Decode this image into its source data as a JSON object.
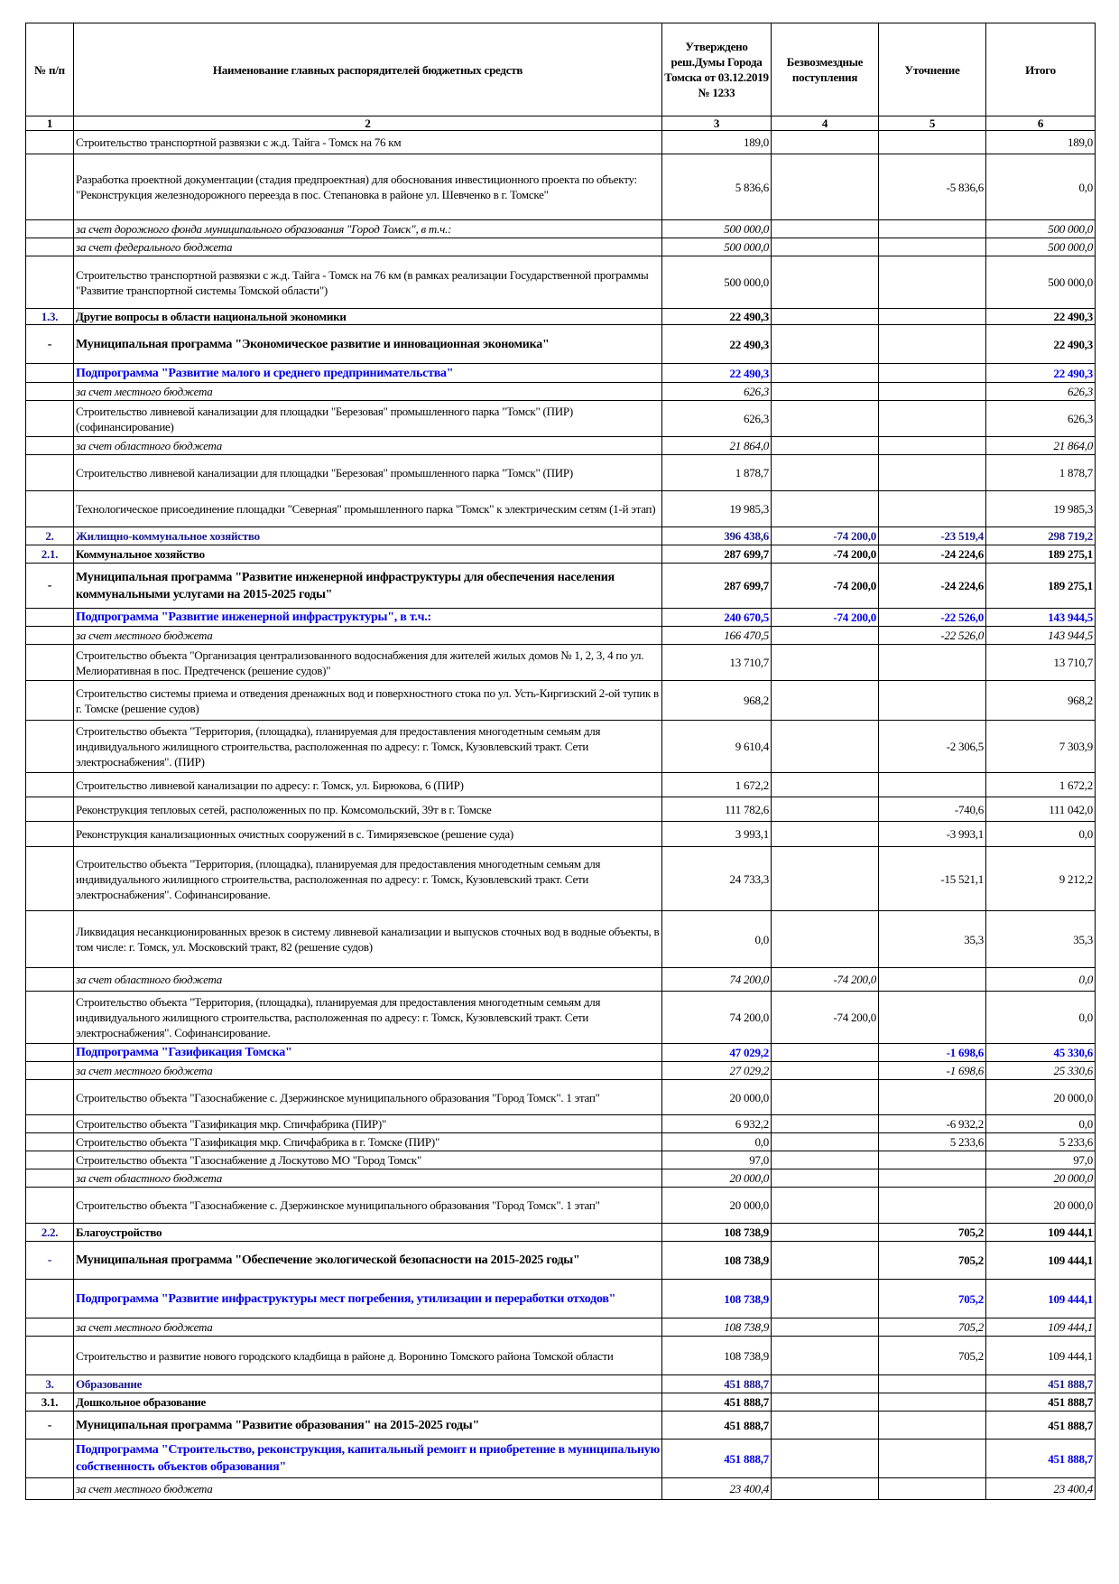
{
  "header": {
    "num": "№ п/п",
    "name": "Наименование главных распорядителей бюджетных средств",
    "approved": "Утверждено реш.Думы Города Томска от 03.12.2019 № 1233",
    "grants": "Безвозмездные поступления",
    "adjustment": "Уточнение",
    "total": "Итого"
  },
  "column_numbers": [
    "1",
    "2",
    "3",
    "4",
    "5",
    "6"
  ],
  "colors": {
    "section": "#1a1a8c",
    "subprogram": "#0000ee",
    "text": "#000000"
  },
  "rows": [
    {
      "type": "plain",
      "num": "",
      "name": "Строительство транспортной развязки с ж.д. Тайга - Томск на 76 км",
      "c3": "189,0",
      "c4": "",
      "c5": "",
      "c6": "189,0"
    },
    {
      "type": "plain",
      "num": "",
      "name": "Разработка проектной документации (стадия предпроектная) для обоснования инвестиционного проекта по объекту:  \"Реконструкция железнодорожного переезда в пос. Степановка в районе ул. Шевченко в г. Томске\"",
      "c3": "5 836,6",
      "c4": "",
      "c5": "-5 836,6",
      "c6": "0,0"
    },
    {
      "type": "italic",
      "num": "",
      "name": "за счет дорожного фонда муниципального образования \"Город Томск\", в т.ч.:",
      "c3": "500 000,0",
      "c4": "",
      "c5": "",
      "c6": "500 000,0"
    },
    {
      "type": "italic",
      "num": "",
      "name": "за счет федерального бюджета",
      "c3": "500 000,0",
      "c4": "",
      "c5": "",
      "c6": "500 000,0"
    },
    {
      "type": "plain",
      "num": "",
      "name": "Строительство транспортной развязки с ж.д. Тайга - Томск на 76 км (в рамках реализации Государственной программы \"Развитие транспортной системы Томской области\")",
      "c3": "500 000,0",
      "c4": "",
      "c5": "",
      "c6": "500 000,0"
    },
    {
      "type": "section",
      "num": "1.3.",
      "name": "Другие вопросы в области национальной экономики",
      "c3": "22 490,3",
      "c4": "",
      "c5": "",
      "c6": "22 490,3"
    },
    {
      "type": "program",
      "num": "-",
      "name": "Муниципальная программа \"Экономическое развитие и инновационная экономика\"",
      "c3": "22 490,3",
      "c4": "",
      "c5": "",
      "c6": "22 490,3"
    },
    {
      "type": "sub",
      "num": "",
      "name": "Подпрограмма \"Развитие малого и среднего предпринимательства\"",
      "c3": "22 490,3",
      "c4": "",
      "c5": "",
      "c6": "22 490,3"
    },
    {
      "type": "italic",
      "num": "",
      "name": "за счет местного бюджета",
      "c3": "626,3",
      "c4": "",
      "c5": "",
      "c6": "626,3"
    },
    {
      "type": "plain",
      "num": "",
      "name": "Строительство ливневой канализации для площадки \"Березовая\" промышленного парка \"Томск\" (ПИР) (софинансирование)",
      "c3": "626,3",
      "c4": "",
      "c5": "",
      "c6": "626,3"
    },
    {
      "type": "italic",
      "num": "",
      "name": "за счет областного бюджета",
      "c3": "21 864,0",
      "c4": "",
      "c5": "",
      "c6": "21 864,0"
    },
    {
      "type": "plain",
      "num": "",
      "name": "Строительство ливневой канализации для площадки \"Березовая\" промышленного парка \"Томск\" (ПИР)",
      "c3": "1 878,7",
      "c4": "",
      "c5": "",
      "c6": "1 878,7"
    },
    {
      "type": "plain",
      "num": "",
      "name": "Технологическое присоединение площадки \"Северная\" промышленного парка \"Томск\" к электрическим сетям (1-й этап)",
      "c3": "19 985,3",
      "c4": "",
      "c5": "",
      "c6": "19 985,3"
    },
    {
      "type": "section-blue",
      "num": "2.",
      "name": "Жилищно-коммунальное хозяйство",
      "c3": "396 438,6",
      "c4": "-74 200,0",
      "c5": "-23 519,4",
      "c6": "298 719,2"
    },
    {
      "type": "section",
      "num": "2.1.",
      "name": "Коммунальное хозяйство",
      "c3": "287 699,7",
      "c4": "-74 200,0",
      "c5": "-24 224,6",
      "c6": "189 275,1"
    },
    {
      "type": "program",
      "num": "-",
      "name": "Муниципальная программа \"Развитие инженерной инфраструктуры для обеспечения населения коммунальными услугами на 2015-2025 годы\"",
      "c3": "287 699,7",
      "c4": "-74 200,0",
      "c5": "-24 224,6",
      "c6": "189 275,1"
    },
    {
      "type": "sub",
      "num": "",
      "name": "Подпрограмма \"Развитие инженерной инфраструктуры\", в т.ч.:",
      "c3": "240 670,5",
      "c4": "-74 200,0",
      "c5": "-22 526,0",
      "c6": "143 944,5"
    },
    {
      "type": "italic",
      "num": "",
      "name": "за счет местного бюджета",
      "c3": "166 470,5",
      "c4": "",
      "c5": "-22 526,0",
      "c6": "143 944,5"
    },
    {
      "type": "plain",
      "num": "",
      "name": "Строительство объекта \"Организация централизованного водоснабжения для жителей жилых домов № 1, 2, 3, 4 по ул. Мелиоративная в пос. Предтеченск (решение судов)\"",
      "c3": "13 710,7",
      "c4": "",
      "c5": "",
      "c6": "13 710,7"
    },
    {
      "type": "plain",
      "num": "",
      "name": "Строительство системы приема и отведения дренажных вод и поверхностного стока по ул. Усть-Киргизский 2-ой тупик в г. Томске (решение судов)",
      "c3": "968,2",
      "c4": "",
      "c5": "",
      "c6": "968,2"
    },
    {
      "type": "plain",
      "num": "",
      "name": "Строительство объекта \"Территория, (площадка), планируемая для предоставления многодетным семьям для индивидуального жилищного строительства, расположенная по адресу: г. Томск, Кузовлевский тракт. Сети электроснабжения\". (ПИР)",
      "c3": "9 610,4",
      "c4": "",
      "c5": "-2 306,5",
      "c6": "7 303,9"
    },
    {
      "type": "plain",
      "num": "",
      "name": "Строительство ливневой канализации по адресу: г. Томск, ул. Бирюкова, 6 (ПИР)",
      "c3": "1 672,2",
      "c4": "",
      "c5": "",
      "c6": "1 672,2"
    },
    {
      "type": "plain",
      "num": "",
      "name": "Реконструкция тепловых сетей, расположенных по пр. Комсомольский, 39т в г. Томске",
      "c3": "111 782,6",
      "c4": "",
      "c5": "-740,6",
      "c6": "111 042,0"
    },
    {
      "type": "plain",
      "num": "",
      "name": "Реконструкция канализационных очистных сооружений в с. Тимирязевское (решение суда)",
      "c3": "3 993,1",
      "c4": "",
      "c5": "-3 993,1",
      "c6": "0,0"
    },
    {
      "type": "plain",
      "num": "",
      "name": "Строительство объекта \"Территория, (площадка), планируемая для предоставления многодетным семьям для индивидуального жилищного строительства, расположенная по адресу: г. Томск, Кузовлевский тракт. Сети электроснабжения\". Софинансирование.",
      "c3": "24 733,3",
      "c4": "",
      "c5": "-15 521,1",
      "c6": "9 212,2"
    },
    {
      "type": "plain",
      "num": "",
      "name": "Ликвидация несанкционированных врезок в систему ливневой канализации и выпусков сточных вод в водные объекты, в том числе: г. Томск, ул. Московский тракт, 82 (решение судов)",
      "c3": "0,0",
      "c4": "",
      "c5": "35,3",
      "c6": "35,3"
    },
    {
      "type": "italic",
      "num": "",
      "name": "за счет  областного бюджета",
      "c3": "74 200,0",
      "c4": "-74 200,0",
      "c5": "",
      "c6": "0,0"
    },
    {
      "type": "plain",
      "num": "",
      "name": "Строительство объекта \"Территория, (площадка), планируемая для предоставления многодетным семьям для индивидуального жилищного строительства, расположенная по адресу: г. Томск, Кузовлевский тракт. Сети электроснабжения\". Софинансирование.",
      "c3": "74 200,0",
      "c4": "-74 200,0",
      "c5": "",
      "c6": "0,0"
    },
    {
      "type": "sub",
      "num": "",
      "name": "Подпрограмма \"Газификация Томска\"",
      "c3": "47 029,2",
      "c4": "",
      "c5": "-1 698,6",
      "c6": "45 330,6"
    },
    {
      "type": "italic",
      "num": "",
      "name": "за счет местного бюджета",
      "c3": "27 029,2",
      "c4": "",
      "c5": "-1 698,6",
      "c6": "25 330,6"
    },
    {
      "type": "plain",
      "num": "",
      "name": "Строительство объекта \"Газоснабжение с. Дзержинское муниципального образования \"Город Томск\". 1 этап\"",
      "c3": "20 000,0",
      "c4": "",
      "c5": "",
      "c6": "20 000,0"
    },
    {
      "type": "plain",
      "num": "",
      "name": "Строительство объекта \"Газификация мкр. Спичфабрика (ПИР)\"",
      "c3": "6 932,2",
      "c4": "",
      "c5": "-6 932,2",
      "c6": "0,0"
    },
    {
      "type": "plain",
      "num": "",
      "name": "Строительство объекта \"Газификация мкр. Спичфабрика в г. Томске (ПИР)\"",
      "c3": "0,0",
      "c4": "",
      "c5": "5 233,6",
      "c6": "5 233,6"
    },
    {
      "type": "plain",
      "num": "",
      "name": "Строительство объекта \"Газоснабжение д Лоскутово МО \"Город Томск\"",
      "c3": "97,0",
      "c4": "",
      "c5": "",
      "c6": "97,0"
    },
    {
      "type": "italic",
      "num": "",
      "name": "за счет областного бюджета",
      "c3": "20 000,0",
      "c4": "",
      "c5": "",
      "c6": "20 000,0"
    },
    {
      "type": "plain",
      "num": "",
      "name": "Строительство объекта \"Газоснабжение с. Дзержинское муниципального образования \"Город Томск\". 1 этап\"",
      "c3": "20 000,0",
      "c4": "",
      "c5": "",
      "c6": "20 000,0"
    },
    {
      "type": "section",
      "num": "2.2.",
      "name": "Благоустройство",
      "c3": "108 738,9",
      "c4": "",
      "c5": "705,2",
      "c6": "109 444,1"
    },
    {
      "type": "program program-bluedash",
      "num": "-",
      "name": "Муниципальная программа \"Обеспечение экологической безопасности на 2015-2025 годы\"",
      "c3": "108 738,9",
      "c4": "",
      "c5": "705,2",
      "c6": "109 444,1"
    },
    {
      "type": "sub",
      "num": "",
      "name": "Подпрограмма \"Развитие инфраструктуры мест погребения, утилизации и переработки отходов\"",
      "c3": "108 738,9",
      "c4": "",
      "c5": "705,2",
      "c6": "109 444,1"
    },
    {
      "type": "italic",
      "num": "",
      "name": "за счет  местного бюджета",
      "c3": "108 738,9",
      "c4": "",
      "c5": "705,2",
      "c6": "109 444,1"
    },
    {
      "type": "plain",
      "num": "",
      "name": "Строительство и развитие нового городского кладбища в районе д. Воронино Томского района Томской области",
      "c3": "108 738,9",
      "c4": "",
      "c5": "705,2",
      "c6": "109 444,1"
    },
    {
      "type": "section-blue",
      "num": "3.",
      "name": "Образование",
      "c3": "451 888,7",
      "c4": "",
      "c5": "",
      "c6": "451 888,7"
    },
    {
      "type": "section-plain",
      "num": "3.1.",
      "name": "Дошкольное образование",
      "c3": "451 888,7",
      "c4": "",
      "c5": "",
      "c6": "451 888,7"
    },
    {
      "type": "program",
      "num": "-",
      "name": "Муниципальная программа \"Развитие образования\" на 2015-2025 годы\"",
      "c3": "451 888,7",
      "c4": "",
      "c5": "",
      "c6": "451 888,7"
    },
    {
      "type": "sub",
      "num": "",
      "name": "Подпрограмма \"Строительство, реконструкция, капитальный ремонт и приобретение в муниципальную собственность объектов образования\"",
      "c3": "451 888,7",
      "c4": "",
      "c5": "",
      "c6": "451 888,7"
    },
    {
      "type": "italic",
      "num": "",
      "name": "за счет местного бюджета",
      "c3": "23 400,4",
      "c4": "",
      "c5": "",
      "c6": "23 400,4"
    }
  ]
}
